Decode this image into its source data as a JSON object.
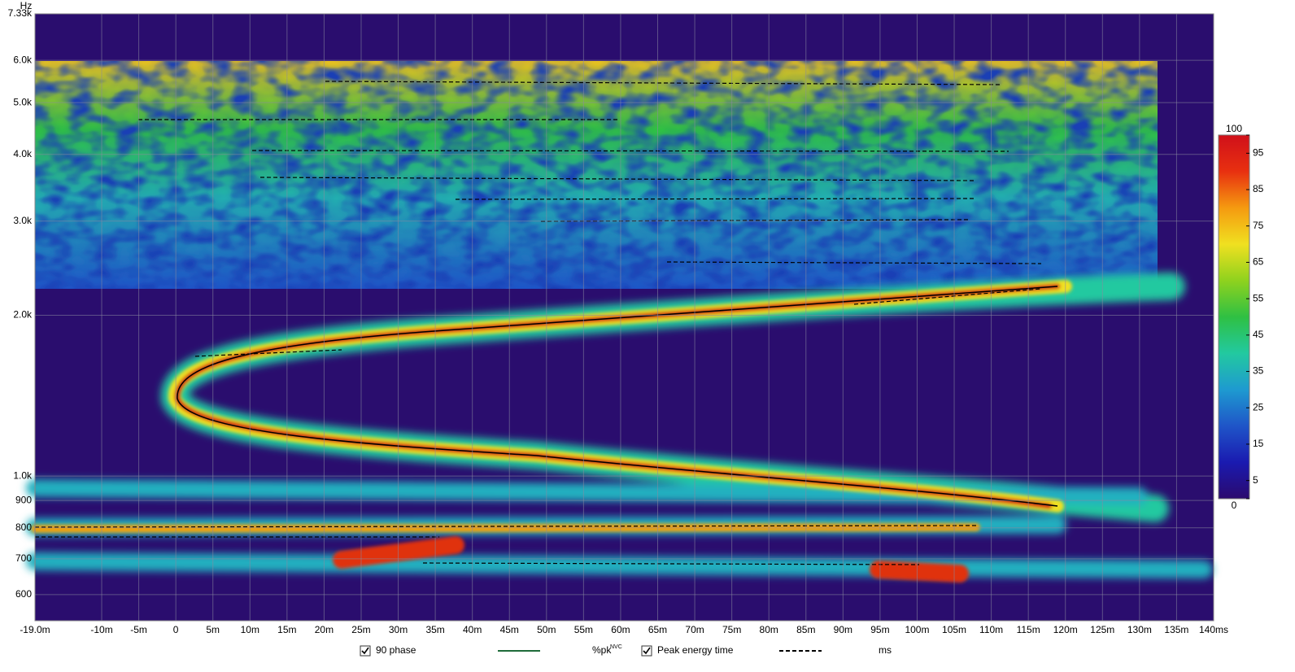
{
  "chart_data": {
    "type": "spectrogram",
    "y_unit": "Hz",
    "xlim": [
      -19,
      140
    ],
    "ylim": [
      536,
      7330
    ],
    "log_y": true,
    "grid": true,
    "xticks": [
      {
        "value": -19,
        "label": "-19.0m"
      },
      {
        "value": -10,
        "label": "-10m"
      },
      {
        "value": -5,
        "label": "-5m"
      },
      0,
      {
        "value": 5,
        "label": "5m"
      },
      {
        "value": 10,
        "label": "10m"
      },
      {
        "value": 15,
        "label": "15m"
      },
      {
        "value": 20,
        "label": "20m"
      },
      {
        "value": 25,
        "label": "25m"
      },
      {
        "value": 30,
        "label": "30m"
      },
      {
        "value": 35,
        "label": "35m"
      },
      {
        "value": 40,
        "label": "40m"
      },
      {
        "value": 45,
        "label": "45m"
      },
      {
        "value": 50,
        "label": "50m"
      },
      {
        "value": 55,
        "label": "55m"
      },
      {
        "value": 60,
        "label": "60m"
      },
      {
        "value": 65,
        "label": "65m"
      },
      {
        "value": 70,
        "label": "70m"
      },
      {
        "value": 75,
        "label": "75m"
      },
      {
        "value": 80,
        "label": "80m"
      },
      {
        "value": 85,
        "label": "85m"
      },
      {
        "value": 90,
        "label": "90m"
      },
      {
        "value": 95,
        "label": "95m"
      },
      {
        "value": 100,
        "label": "100m"
      },
      {
        "value": 105,
        "label": "105m"
      },
      {
        "value": 110,
        "label": "110m"
      },
      {
        "value": 115,
        "label": "115m"
      },
      {
        "value": 120,
        "label": "120m"
      },
      {
        "value": 125,
        "label": "125m"
      },
      {
        "value": 130,
        "label": "130m"
      },
      {
        "value": 135,
        "label": "135m"
      },
      {
        "value": 140,
        "label": "140ms"
      }
    ],
    "yticks": [
      600,
      700,
      800,
      900,
      {
        "value": 1000,
        "label": "1.0k"
      },
      {
        "value": 2000,
        "label": "2.0k"
      },
      {
        "value": 3000,
        "label": "3.0k"
      },
      {
        "value": 4000,
        "label": "4.0k"
      },
      {
        "value": 5000,
        "label": "5.0k"
      },
      {
        "value": 6000,
        "label": "6.0k"
      },
      {
        "value": 7330,
        "label": "7.33k"
      }
    ],
    "colorbar": {
      "lim": [
        0,
        100
      ],
      "ticks": [
        0,
        5,
        15,
        25,
        35,
        45,
        55,
        65,
        75,
        85,
        95,
        100
      ],
      "colors": [
        "#2b0a6e",
        "#1a1ab0",
        "#1f55c8",
        "#1e9ad0",
        "#22c9a0",
        "#2fc043",
        "#8fd21e",
        "#f0e020",
        "#f59a10",
        "#e83010",
        "#d0101a"
      ]
    },
    "legend": [
      {
        "label": "90 phase",
        "checked": true,
        "color": "#1f6b3a",
        "unit": "%pk",
        "unit_sup": "NVC"
      },
      {
        "label": "Peak energy time",
        "checked": true,
        "color": "#000000",
        "unit": "ms"
      }
    ]
  }
}
